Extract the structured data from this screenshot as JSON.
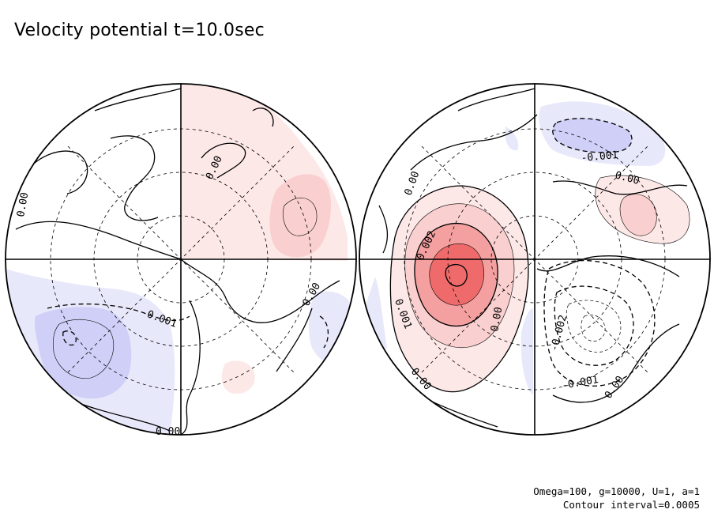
{
  "title": "Velocity potential t=10.0sec",
  "chart_data": {
    "type": "contour",
    "projection": "polar stereographic, two hemispheres",
    "quantity": "Velocity potential",
    "time": "t=10.0sec",
    "parameters": "Omega=100, g=10000, U=1, a=1",
    "contour_interval": "Contour interval=0.0005",
    "colors": {
      "positive_light": "#fde8e8",
      "positive_mid": "#f9cfcf",
      "positive_strong": "#f5a0a0",
      "positive_core": "#ef6b6b",
      "negative_light": "#e8e8fb",
      "negative_mid": "#cfcff7",
      "negative_strong": "#b4b4f4",
      "line": "#000000",
      "grid": "#000000"
    },
    "hemispheres": [
      {
        "name": "left",
        "labels": [
          "0.00",
          "0.00",
          "-0.001",
          "0.00",
          "0.00"
        ],
        "features": [
          {
            "sign": "positive",
            "level": 0.0005,
            "location": "east"
          },
          {
            "sign": "negative",
            "level": -0.001,
            "location": "southwest"
          }
        ]
      },
      {
        "name": "right",
        "labels": [
          "0.00",
          "0.002",
          "0.001",
          "0.00",
          "0.00",
          "-0.001",
          "0.00",
          "-0.002",
          "-0.001",
          "0.00"
        ],
        "features": [
          {
            "sign": "positive",
            "level": 0.003,
            "location": "west"
          },
          {
            "sign": "positive",
            "level": 0.0005,
            "location": "east"
          },
          {
            "sign": "negative",
            "level": -0.001,
            "location": "north"
          },
          {
            "sign": "negative",
            "level": -0.0025,
            "location": "southeast"
          }
        ]
      }
    ]
  }
}
